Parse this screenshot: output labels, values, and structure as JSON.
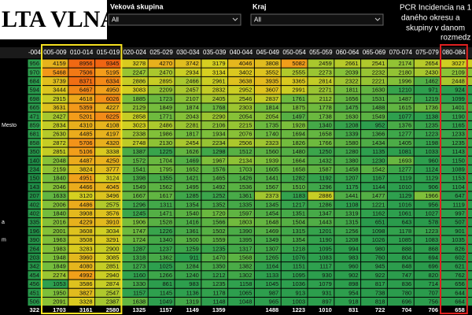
{
  "header": {
    "title": "LTA VLNA",
    "filters": [
      {
        "label": "Veková skupina",
        "value": "All"
      },
      {
        "label": "Kraj",
        "value": "All"
      }
    ],
    "note": [
      "PCR Incidencia na 1",
      "daného okresu a",
      "skupiny v danom",
      "rozmedz"
    ]
  },
  "table": {
    "columns": [
      "-004",
      "005-009",
      "010-014",
      "015-019",
      "020-024",
      "025-029",
      "030-034",
      "035-039",
      "040-044",
      "045-049",
      "050-054",
      "055-059",
      "060-064",
      "065-069",
      "070-074",
      "075-079",
      "080-084"
    ],
    "rows": [
      {
        "values": [
          956,
          4159,
          8956,
          9345,
          3278,
          4270,
          3742,
          3179,
          4046,
          3808,
          5082,
          2459,
          2661,
          2541,
          2174,
          2654,
          3027
        ]
      },
      {
        "values": [
          970,
          5468,
          7506,
          5195,
          2247,
          2470,
          2934,
          3134,
          3402,
          3552,
          2555,
          2273,
          2039,
          2232,
          2180,
          2430,
          2109
        ]
      },
      {
        "values": [
          684,
          3739,
          8371,
          6334,
          2886,
          2895,
          2466,
          2961,
          3638,
          3935,
          3365,
          2814,
          2322,
          2221,
          1996,
          1462,
          2448
        ]
      },
      {
        "values": [
          594,
          3444,
          6467,
          4950,
          3083,
          2209,
          2457,
          2832,
          2952,
          3607,
          2991,
          2271,
          1811,
          1630,
          1210,
          971,
          924
        ]
      },
      {
        "values": [
          698,
          2915,
          4618,
          6026,
          1885,
          1723,
          2107,
          2405,
          2546,
          2837,
          1761,
          2112,
          1656,
          1531,
          1487,
          1219,
          1099
        ]
      },
      {
        "values": [
          665,
          3631,
          5359,
          4227,
          2129,
          1849,
          1874,
          1768,
          2303,
          1814,
          1875,
          1778,
          1475,
          1488,
          1615,
          1736,
          1401
        ]
      },
      {
        "values": [
          471,
          2427,
          5201,
          6225,
          2858,
          1771,
          2043,
          2290,
          2054,
          2054,
          1497,
          1738,
          1630,
          1549,
          1077,
          1138,
          1190
        ]
      },
      {
        "label": "Mesto",
        "values": [
          859,
          2834,
          4310,
          4108,
          3023,
          2486,
          2281,
          2106,
          2215,
          1735,
          1928,
          1340,
          1208,
          952,
          1376,
          1235,
          1165
        ]
      },
      {
        "values": [
          681,
          2630,
          4485,
          4197,
          2338,
          1986,
          1817,
          1934,
          2076,
          1740,
          1694,
          1658,
          1339,
          1366,
          1277,
          1223,
          1233
        ]
      },
      {
        "values": [
          858,
          2872,
          5706,
          4320,
          2748,
          2130,
          2454,
          2234,
          2506,
          2323,
          1826,
          1766,
          1580,
          1434,
          1405,
          1198,
          1235
        ]
      },
      {
        "values": [
          350,
          2851,
          5106,
          3338,
          1387,
          1225,
          1626,
          1298,
          1512,
          1560,
          1480,
          1250,
          1280,
          1135,
          1081,
          1033,
          1143
        ]
      },
      {
        "values": [
          140,
          2048,
          4487,
          4250,
          1572,
          1704,
          1469,
          1967,
          2134,
          1939,
          1664,
          1432,
          1380,
          1230,
          1693,
          960,
          1150
        ]
      },
      {
        "values": [
          234,
          2159,
          3824,
          3777,
          1541,
          1795,
          1652,
          1576,
          1703,
          1605,
          1658,
          1587,
          1458,
          1542,
          1277,
          1124,
          1089
        ]
      },
      {
        "values": [
          150,
          1840,
          4951,
          3124,
          1398,
          1355,
          1421,
          1465,
          1426,
          1441,
          1282,
          1192,
          1207,
          1167,
          1119,
          1129,
          1153
        ]
      },
      {
        "values": [
          143,
          2046,
          4466,
          4045,
          1549,
          1562,
          1495,
          1492,
          1536,
          1567,
          1510,
          1296,
          1175,
          1144,
          1010,
          906,
          1104
        ]
      },
      {
        "values": [
          207,
          1633,
          3120,
          3496,
          1667,
          1617,
          1285,
          1252,
          1361,
          2373,
          1183,
          2886,
          1441,
          1477,
          1129,
          1966,
          647
        ]
      },
      {
        "values": [
          402,
          2006,
          4486,
          2575,
          1296,
          1311,
          1354,
          1352,
          1335,
          1345,
          1217,
          1286,
          1108,
          1221,
          1016,
          956,
          1119
        ]
      },
      {
        "values": [
          402,
          1840,
          3908,
          3576,
          1245,
          1471,
          1540,
          1720,
          1597,
          1454,
          1351,
          1347,
          1319,
          1162,
          1061,
          1027,
          997
        ]
      },
      {
        "label": "a",
        "values": [
          335,
          2016,
          4229,
          3910,
          1906,
          1528,
          1416,
          1566,
          1803,
          1648,
          1504,
          1443,
          1315,
          651,
          643,
          578,
          507
        ]
      },
      {
        "values": [
          196,
          2001,
          3608,
          3034,
          1747,
          1226,
          1361,
          1502,
          1390,
          1469,
          1315,
          1201,
          1256,
          1098,
          1178,
          1223,
          901
        ]
      },
      {
        "label": "m",
        "values": [
          390,
          1963,
          3508,
          3291,
          1724,
          1340,
          1500,
          1559,
          1395,
          1349,
          1354,
          1190,
          1208,
          1026,
          1085,
          1083,
          1035
        ]
      },
      {
        "values": [
          264,
          1983,
          3283,
          2900,
          1287,
          1237,
          1259,
          1235,
          1317,
          1307,
          1218,
          1095,
          994,
          980,
          888,
          868,
          826
        ]
      },
      {
        "values": [
          203,
          1948,
          3960,
          3085,
          1318,
          1362,
          911,
          1470,
          1568,
          1265,
          1076,
          1083,
          983,
          760,
          804,
          694,
          602
        ]
      },
      {
        "values": [
          342,
          1849,
          4080,
          2851,
          1273,
          1025,
          1284,
          1350,
          1382,
          1164,
          1151,
          1117,
          960,
          945,
          848,
          696,
          621
        ]
      },
      {
        "values": [
          454,
          2274,
          4992,
          2940,
          1160,
          1266,
          1240,
          1212,
          1302,
          1133,
          1095,
          930,
          902,
          922,
          747,
          820,
          762
        ]
      },
      {
        "values": [
          456,
          1053,
          3586,
          2874,
          1330,
          861,
          983,
          1235,
          1158,
          1045,
          1036,
          1079,
          898,
          817,
          836,
          714,
          656
        ]
      },
      {
        "values": [
          451,
          1950,
          3827,
          2547,
          1157,
          1145,
          1136,
          1178,
          1065,
          987,
          913,
          931,
          954,
          738,
          780,
          707,
          644
        ]
      },
      {
        "values": [
          506,
          2091,
          3328,
          2387,
          1638,
          1049,
          1319,
          1148,
          1048,
          965,
          1003,
          897,
          918,
          818,
          696,
          756,
          664
        ]
      }
    ],
    "total": [
      322,
      1703,
      3161,
      2580,
      1325,
      1157,
      1149,
      1359,
      null,
      1488,
      1223,
      1010,
      831,
      722,
      704,
      706,
      658
    ]
  }
}
